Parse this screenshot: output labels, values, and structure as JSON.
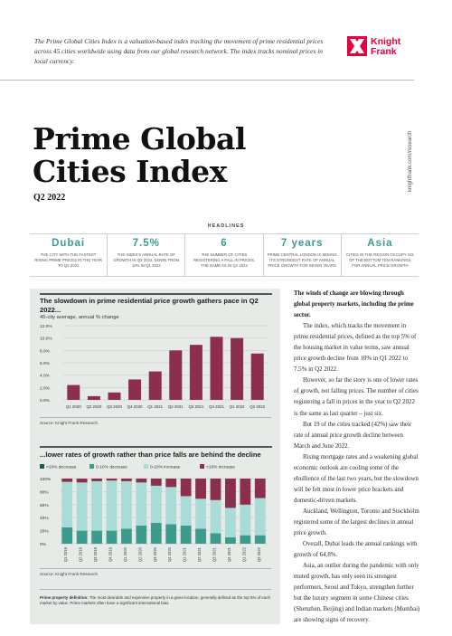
{
  "intro": "The Prime Global Cities Index is a valuation-based index tracking the movement of prime residential prices across 45 cities worldwide using data from our global research network. The index tracks nominal prices in local currency.",
  "brand": {
    "name_line1": "Knight",
    "name_line2": "Frank",
    "color": "#e4003b"
  },
  "side_url": "knightfrank.com/research",
  "title": "Prime Global Cities Index",
  "subtitle": "Q2 2022",
  "headlines": {
    "label": "HEADLINES",
    "items": [
      {
        "value": "Dubai",
        "desc": "The city with the fastest rising prime prices in the year to Q2 2022"
      },
      {
        "value": "7.5%",
        "desc": "The index's annual rate of growth in Q2 2022, down from 10% in Q1 2022"
      },
      {
        "value": "6",
        "desc": "The number of cities registering a fall in prices, the same as in Q1 2022"
      },
      {
        "value": "7 years",
        "desc": "Prime central London is seeing its strongest rate of annual price growth for seven years"
      },
      {
        "value": "Asia",
        "desc": "Cities in the region occupy six of the bottom ten rankings for annual price growth"
      }
    ]
  },
  "chart1": {
    "title": "The slowdown in prime residential price growth gathers pace in Q2 2022...",
    "subtitle": "45-city average, annual % change",
    "source": "Source: Knight Frank Research"
  },
  "chart2": {
    "title": "...lower rates of growth rather than price falls are behind the decline",
    "source": "Source: Knight Frank Research"
  },
  "chart_data": [
    {
      "type": "bar",
      "title": "The slowdown in prime residential price growth gathers pace in Q2 2022...",
      "subtitle": "45-city average, annual % change",
      "categories": [
        "Q1 2020",
        "Q2 2020",
        "Q3 2020",
        "Q4 2020",
        "Q1 2021",
        "Q2 2021",
        "Q3 2021",
        "Q4 2021",
        "Q1 2022",
        "Q2 2022"
      ],
      "values": [
        2.4,
        0.6,
        1.2,
        3.3,
        4.6,
        8.0,
        8.9,
        10.2,
        10.0,
        7.5
      ],
      "yticks": [
        "0.0%",
        "2.0%",
        "4.0%",
        "6.0%",
        "8.0%",
        "10.0%",
        "12.0%"
      ],
      "ylim": [
        0,
        12
      ],
      "color": "#8c2f4e"
    },
    {
      "type": "bar",
      "stacked": true,
      "title": "...lower rates of growth rather than price falls are behind the decline",
      "categories": [
        "Q1 2019",
        "Q2 2019",
        "Q3 2019",
        "Q4 2019",
        "Q1 2020",
        "Q2 2020",
        "Q3 2020",
        "Q4 2020",
        "Q1 2021",
        "Q2 2021",
        "Q3 2021",
        "Q4 2021",
        "Q1 2022",
        "Q2 2022"
      ],
      "series": [
        {
          "name": ">10% decrease",
          "color": "#1e5c4f",
          "values": [
            0,
            0,
            0,
            0,
            0,
            0,
            0,
            0,
            0,
            0,
            0,
            0,
            0,
            0
          ]
        },
        {
          "name": "0-10% decrease",
          "color": "#3d9b8e",
          "values": [
            25,
            20,
            20,
            20,
            23,
            28,
            32,
            30,
            28,
            23,
            16,
            10,
            13,
            13
          ]
        },
        {
          "name": "0-10% increase",
          "color": "#a9dcd6",
          "values": [
            70,
            74,
            76,
            77,
            73,
            66,
            57,
            57,
            45,
            46,
            51,
            45,
            47,
            57
          ]
        },
        {
          "name": ">10% increase",
          "color": "#8c2f4e",
          "values": [
            5,
            6,
            4,
            3,
            4,
            6,
            11,
            13,
            27,
            31,
            33,
            45,
            40,
            30
          ]
        }
      ],
      "yticks": [
        "0%",
        "20%",
        "40%",
        "60%",
        "80%",
        "100%"
      ],
      "ylim": [
        0,
        100
      ]
    }
  ],
  "definition": {
    "label": "Prime property definition:",
    "text": "The most desirable and expensive property in a given location, generally defined as the top 5% of each market by value. Prime markets often have a significant international bias."
  },
  "body": {
    "lead": "The winds of change are blowing through global property markets, including the prime sector.",
    "paragraphs": [
      "The index, which tracks the movement in prime residential prices, defined as the top 5% of the housing market in value terms, saw annual price growth decline from 10% in Q1 2022 to 7.5% in Q2 2022.",
      "However, so far the story is one of lower rates of growth, not falling prices. The number of cities registering a fall in prices in the year to Q2 2022 is the same as last quarter – just six.",
      "But 19 of the cities tracked (42%) saw their rate of annual price growth decline between March and June 2022.",
      "Rising mortgage rates and a weakening global economic outlook are cooling some of the ebullience of the last two years, but the slowdown will be felt most in lower price brackets and domestic-driven markets.",
      "Auckland, Wellington, Toronto and Stockholm registered some of the largest declines in annual price growth.",
      "Overall, Dubai leads the annual rankings with growth of 64.8%.",
      "Asia, an outlier during the pandemic with only muted growth, has only seen its strongest performers, Seoul and Tokyo, strengthen further but the luxury segment in some Chinese cities (Shenzhen, Beijing) and Indian markets (Mumbai) are showing signs of recovery."
    ]
  }
}
